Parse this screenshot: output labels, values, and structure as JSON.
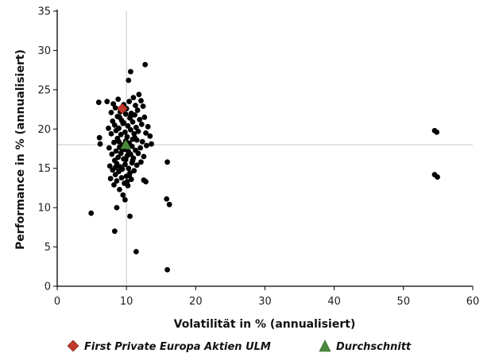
{
  "chart_data": {
    "type": "scatter",
    "xlabel": "Volatilität in % (annualisiert)",
    "ylabel": "Performance in % (annualisiert)",
    "xlim": [
      0,
      60
    ],
    "ylim": [
      0,
      35
    ],
    "xticks": [
      0,
      10,
      20,
      30,
      40,
      50,
      60
    ],
    "yticks": [
      0,
      5,
      10,
      15,
      20,
      25,
      30,
      35
    ],
    "grid": false,
    "reference_lines": {
      "x": 10,
      "y": 18
    },
    "legend_position": "bottom",
    "series": [
      {
        "name": "",
        "marker": "circle",
        "color": "#000000",
        "points": [
          [
            4.9,
            9.3
          ],
          [
            6.0,
            23.4
          ],
          [
            6.1,
            18.9
          ],
          [
            6.2,
            18.1
          ],
          [
            7.2,
            23.5
          ],
          [
            7.4,
            20.1
          ],
          [
            7.5,
            17.6
          ],
          [
            7.6,
            15.3
          ],
          [
            7.7,
            13.7
          ],
          [
            7.8,
            22.1
          ],
          [
            7.8,
            19.4
          ],
          [
            7.9,
            16.8
          ],
          [
            8.0,
            14.8
          ],
          [
            8.0,
            21.0
          ],
          [
            8.1,
            23.2
          ],
          [
            8.2,
            18.3
          ],
          [
            8.2,
            12.9
          ],
          [
            8.3,
            16.0
          ],
          [
            8.3,
            20.5
          ],
          [
            8.4,
            14.2
          ],
          [
            8.4,
            22.7
          ],
          [
            8.5,
            17.2
          ],
          [
            8.5,
            19.8
          ],
          [
            8.6,
            15.6
          ],
          [
            8.6,
            13.4
          ],
          [
            8.7,
            21.6
          ],
          [
            8.7,
            18.8
          ],
          [
            8.8,
            16.4
          ],
          [
            8.8,
            23.8
          ],
          [
            8.9,
            14.6
          ],
          [
            8.9,
            20.1
          ],
          [
            9.0,
            17.7
          ],
          [
            9.0,
            12.3
          ],
          [
            9.1,
            15.2
          ],
          [
            9.1,
            22.2
          ],
          [
            9.2,
            19.3
          ],
          [
            9.2,
            16.9
          ],
          [
            9.3,
            13.8
          ],
          [
            9.3,
            21.1
          ],
          [
            9.4,
            18.0
          ],
          [
            9.4,
            14.9
          ],
          [
            9.5,
            11.6
          ],
          [
            9.5,
            20.7
          ],
          [
            9.6,
            16.2
          ],
          [
            9.6,
            23.1
          ],
          [
            9.7,
            17.4
          ],
          [
            9.7,
            13.1
          ],
          [
            9.8,
            19.6
          ],
          [
            9.8,
            15.5
          ],
          [
            9.9,
            21.9
          ],
          [
            9.9,
            18.5
          ],
          [
            10.0,
            14.0
          ],
          [
            10.0,
            22.6
          ],
          [
            10.1,
            16.6
          ],
          [
            10.1,
            19.0
          ],
          [
            10.2,
            12.8
          ],
          [
            10.2,
            20.4
          ],
          [
            10.3,
            17.1
          ],
          [
            10.3,
            15.0
          ],
          [
            10.4,
            23.5
          ],
          [
            10.4,
            18.2
          ],
          [
            10.5,
            21.4
          ],
          [
            10.5,
            14.4
          ],
          [
            10.6,
            16.8
          ],
          [
            10.6,
            19.9
          ],
          [
            10.7,
            13.6
          ],
          [
            10.7,
            22.0
          ],
          [
            10.8,
            17.8
          ],
          [
            10.8,
            15.7
          ],
          [
            10.9,
            20.9
          ],
          [
            10.9,
            18.7
          ],
          [
            11.0,
            24.0
          ],
          [
            11.0,
            16.3
          ],
          [
            11.1,
            19.4
          ],
          [
            11.1,
            14.7
          ],
          [
            11.2,
            21.8
          ],
          [
            11.3,
            17.3
          ],
          [
            11.3,
            23.0
          ],
          [
            11.4,
            20.2
          ],
          [
            11.5,
            15.4
          ],
          [
            11.5,
            18.6
          ],
          [
            11.6,
            22.4
          ],
          [
            11.7,
            16.9
          ],
          [
            11.7,
            19.7
          ],
          [
            11.8,
            24.4
          ],
          [
            11.9,
            21.2
          ],
          [
            12.0,
            17.6
          ],
          [
            12.1,
            15.8
          ],
          [
            12.1,
            23.6
          ],
          [
            12.2,
            20.6
          ],
          [
            12.3,
            18.4
          ],
          [
            12.4,
            22.9
          ],
          [
            12.5,
            16.5
          ],
          [
            12.6,
            21.5
          ],
          [
            12.8,
            19.5
          ],
          [
            12.9,
            17.9
          ],
          [
            13.1,
            20.3
          ],
          [
            13.4,
            19.1
          ],
          [
            13.6,
            18.1
          ],
          [
            8.9,
            18.4
          ],
          [
            9.3,
            17.5
          ],
          [
            9.6,
            20.8
          ],
          [
            9.9,
            16.1
          ],
          [
            10.2,
            17.9
          ],
          [
            10.6,
            21.6
          ],
          [
            10.9,
            16.0
          ],
          [
            11.2,
            18.9
          ],
          [
            8.4,
            15.1
          ],
          [
            9.0,
            21.5
          ],
          [
            10.1,
            13.3
          ],
          [
            10.4,
            14.1
          ],
          [
            10.6,
            27.3
          ],
          [
            10.3,
            26.2
          ],
          [
            12.7,
            28.2
          ],
          [
            9.8,
            11.0
          ],
          [
            8.6,
            10.0
          ],
          [
            8.3,
            7.0
          ],
          [
            10.5,
            8.9
          ],
          [
            11.4,
            4.4
          ],
          [
            12.5,
            13.5
          ],
          [
            12.8,
            13.3
          ],
          [
            15.9,
            15.8
          ],
          [
            15.8,
            11.1
          ],
          [
            16.2,
            10.4
          ],
          [
            15.9,
            2.1
          ],
          [
            54.5,
            19.8
          ],
          [
            54.8,
            19.6
          ],
          [
            54.5,
            14.2
          ],
          [
            54.9,
            13.9
          ]
        ]
      },
      {
        "name": "First Private Europa Aktien ULM",
        "marker": "diamond",
        "color": "#c0392b",
        "points": [
          [
            9.4,
            22.6
          ]
        ]
      },
      {
        "name": "Durchschnitt",
        "marker": "triangle",
        "color": "#4a8a3a",
        "points": [
          [
            9.9,
            18.0
          ]
        ]
      }
    ]
  }
}
